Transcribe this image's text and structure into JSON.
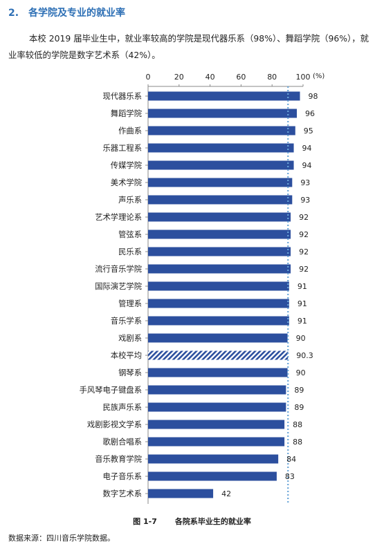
{
  "heading": {
    "number": "2.",
    "title": "各学院及专业的就业率"
  },
  "paragraph": "本校 2019 届毕业生中，就业率较高的学院是现代器乐系（98%）、舞蹈学院（96%），就业率较低的学院是数字艺术系（42%）。",
  "caption": {
    "label": "图 1-7",
    "title": "各院系毕业生的就业率"
  },
  "source": "数据来源：四川音乐学院数据。",
  "colors": {
    "bar": "#2c4f9e",
    "heading": "#2d6fb5",
    "avg_line": "#6aa5d8"
  },
  "chart_data": {
    "type": "bar",
    "orientation": "horizontal",
    "unit_label": "(%)",
    "xlim": [
      0,
      100
    ],
    "x_ticks": [
      0,
      20,
      40,
      60,
      80,
      100
    ],
    "x_axis_position": "top",
    "average_line": 90.3,
    "categories": [
      "现代器乐系",
      "舞蹈学院",
      "作曲系",
      "乐器工程系",
      "传媒学院",
      "美术学院",
      "声乐系",
      "艺术学理论系",
      "管弦系",
      "民乐系",
      "流行音乐学院",
      "国际演艺学院",
      "管理系",
      "音乐学系",
      "戏剧系",
      "本校平均",
      "钢琴系",
      "手风琴电子键盘系",
      "民族声乐系",
      "戏剧影视文学系",
      "歌剧合唱系",
      "音乐教育学院",
      "电子音乐系",
      "数字艺术系"
    ],
    "values": [
      98,
      96,
      95,
      94,
      94,
      93,
      93,
      92,
      92,
      92,
      92,
      91,
      91,
      91,
      90,
      90.3,
      90,
      89,
      89,
      88,
      88,
      84,
      83,
      42
    ],
    "value_labels": [
      "98",
      "96",
      "95",
      "94",
      "94",
      "93",
      "93",
      "92",
      "92",
      "92",
      "92",
      "91",
      "91",
      "91",
      "90",
      "90.3",
      "90",
      "89",
      "89",
      "88",
      "88",
      "84",
      "83",
      "42"
    ],
    "highlight_category": "本校平均",
    "highlight_style": "hatched"
  }
}
